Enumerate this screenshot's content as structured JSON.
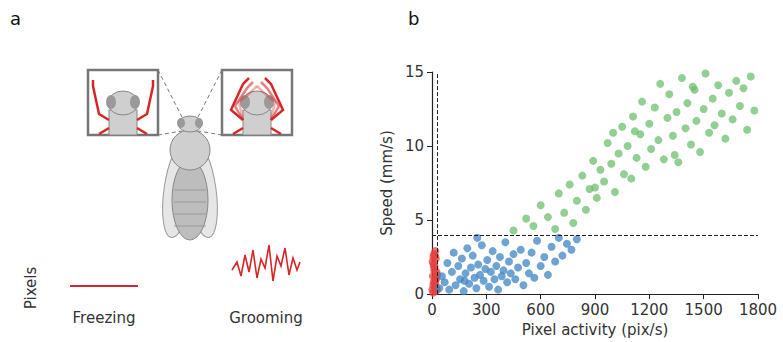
{
  "panel_a": {
    "letter": "a",
    "y_label": "Pixels",
    "labels": [
      "Freezing",
      "Grooming"
    ]
  },
  "panel_b_letter": "b",
  "chart_data": {
    "type": "scatter",
    "x_label": "Pixel activity (pix/s)",
    "y_label": "Speed (mm/s)",
    "xlim": [
      0,
      1800
    ],
    "xticks": [
      0,
      300,
      600,
      900,
      1200,
      1500,
      1800
    ],
    "ylim": [
      0,
      15
    ],
    "yticks": [
      0,
      5,
      10,
      15
    ],
    "grid": false,
    "marker": "circle",
    "reference_lines": [
      {
        "axis": "x",
        "value": 30,
        "line_style": "dashed"
      },
      {
        "axis": "y",
        "value": 4,
        "line_style": "dashed"
      }
    ],
    "series": [
      {
        "color": "#e8403f",
        "x": [
          2,
          5,
          8,
          10,
          12,
          15,
          18,
          20,
          22,
          25,
          3,
          7,
          11,
          14,
          17,
          21,
          24,
          28,
          6,
          9,
          13,
          16,
          19,
          23,
          27
        ],
        "values": [
          0.3,
          1.2,
          2.5,
          0.8,
          1.8,
          0.5,
          2.9,
          1.1,
          0.2,
          1.5,
          2.2,
          0.6,
          2.7,
          1.9,
          0.9,
          2.4,
          0.4,
          1.3,
          0.1,
          2.0,
          1.6,
          2.6,
          0.7,
          1.0,
          0.3
        ]
      },
      {
        "color": "#3f84c4",
        "x": [
          40,
          55,
          70,
          85,
          95,
          110,
          120,
          130,
          145,
          155,
          165,
          175,
          185,
          195,
          205,
          215,
          225,
          235,
          245,
          255,
          265,
          275,
          285,
          295,
          305,
          315,
          325,
          335,
          345,
          355,
          365,
          375,
          385,
          395,
          405,
          415,
          425,
          435,
          450,
          460,
          475,
          490,
          505,
          520,
          535,
          550,
          565,
          580,
          600,
          620,
          640,
          660,
          680,
          700,
          720,
          745,
          770,
          800,
          250,
          180
        ],
        "values": [
          0.4,
          1.2,
          0.8,
          2.1,
          0.3,
          1.5,
          2.8,
          0.6,
          1.9,
          1.0,
          2.4,
          0.2,
          1.4,
          3.1,
          0.7,
          1.8,
          2.6,
          1.1,
          0.4,
          2.0,
          1.3,
          3.3,
          0.9,
          1.7,
          2.3,
          0.5,
          1.5,
          2.9,
          1.0,
          1.9,
          0.3,
          2.5,
          1.2,
          1.6,
          3.5,
          0.8,
          2.2,
          1.4,
          2.7,
          1.0,
          1.8,
          3.0,
          0.6,
          2.1,
          1.4,
          2.8,
          1.1,
          3.6,
          1.9,
          2.5,
          1.3,
          3.2,
          2.2,
          3.8,
          2.6,
          3.4,
          3.0,
          3.7,
          3.8,
          0.9
        ]
      },
      {
        "color": "#6cbf6e",
        "x": [
          450,
          520,
          560,
          600,
          640,
          680,
          700,
          730,
          760,
          780,
          800,
          830,
          850,
          870,
          890,
          910,
          930,
          950,
          970,
          990,
          1010,
          1030,
          1050,
          1060,
          1080,
          1100,
          1110,
          1130,
          1150,
          1160,
          1180,
          1200,
          1210,
          1230,
          1250,
          1260,
          1280,
          1300,
          1310,
          1330,
          1350,
          1360,
          1380,
          1400,
          1410,
          1430,
          1450,
          1460,
          1480,
          1500,
          1510,
          1530,
          1550,
          1560,
          1580,
          1600,
          1620,
          1640,
          1660,
          1680,
          1700,
          1720,
          1740,
          1760,
          1780,
          1000,
          900,
          1120,
          1340,
          1440
        ],
        "values": [
          4.3,
          5.1,
          4.6,
          6.0,
          5.2,
          4.4,
          6.8,
          5.5,
          7.4,
          4.8,
          6.3,
          8.0,
          5.7,
          7.1,
          9.0,
          6.5,
          8.4,
          7.6,
          10.2,
          8.8,
          6.9,
          9.5,
          11.3,
          8.1,
          10.0,
          7.8,
          12.0,
          9.2,
          10.8,
          13.0,
          8.6,
          11.5,
          9.8,
          12.6,
          10.4,
          14.2,
          9.1,
          11.9,
          13.5,
          10.7,
          12.3,
          8.9,
          14.6,
          11.2,
          12.9,
          10.1,
          13.8,
          11.7,
          9.6,
          12.5,
          14.9,
          10.9,
          13.2,
          11.4,
          14.1,
          12.2,
          10.5,
          13.6,
          11.8,
          14.4,
          12.7,
          13.9,
          11.1,
          14.7,
          12.4,
          10.9,
          7.2,
          11.0,
          9.4,
          14.0
        ]
      }
    ]
  }
}
